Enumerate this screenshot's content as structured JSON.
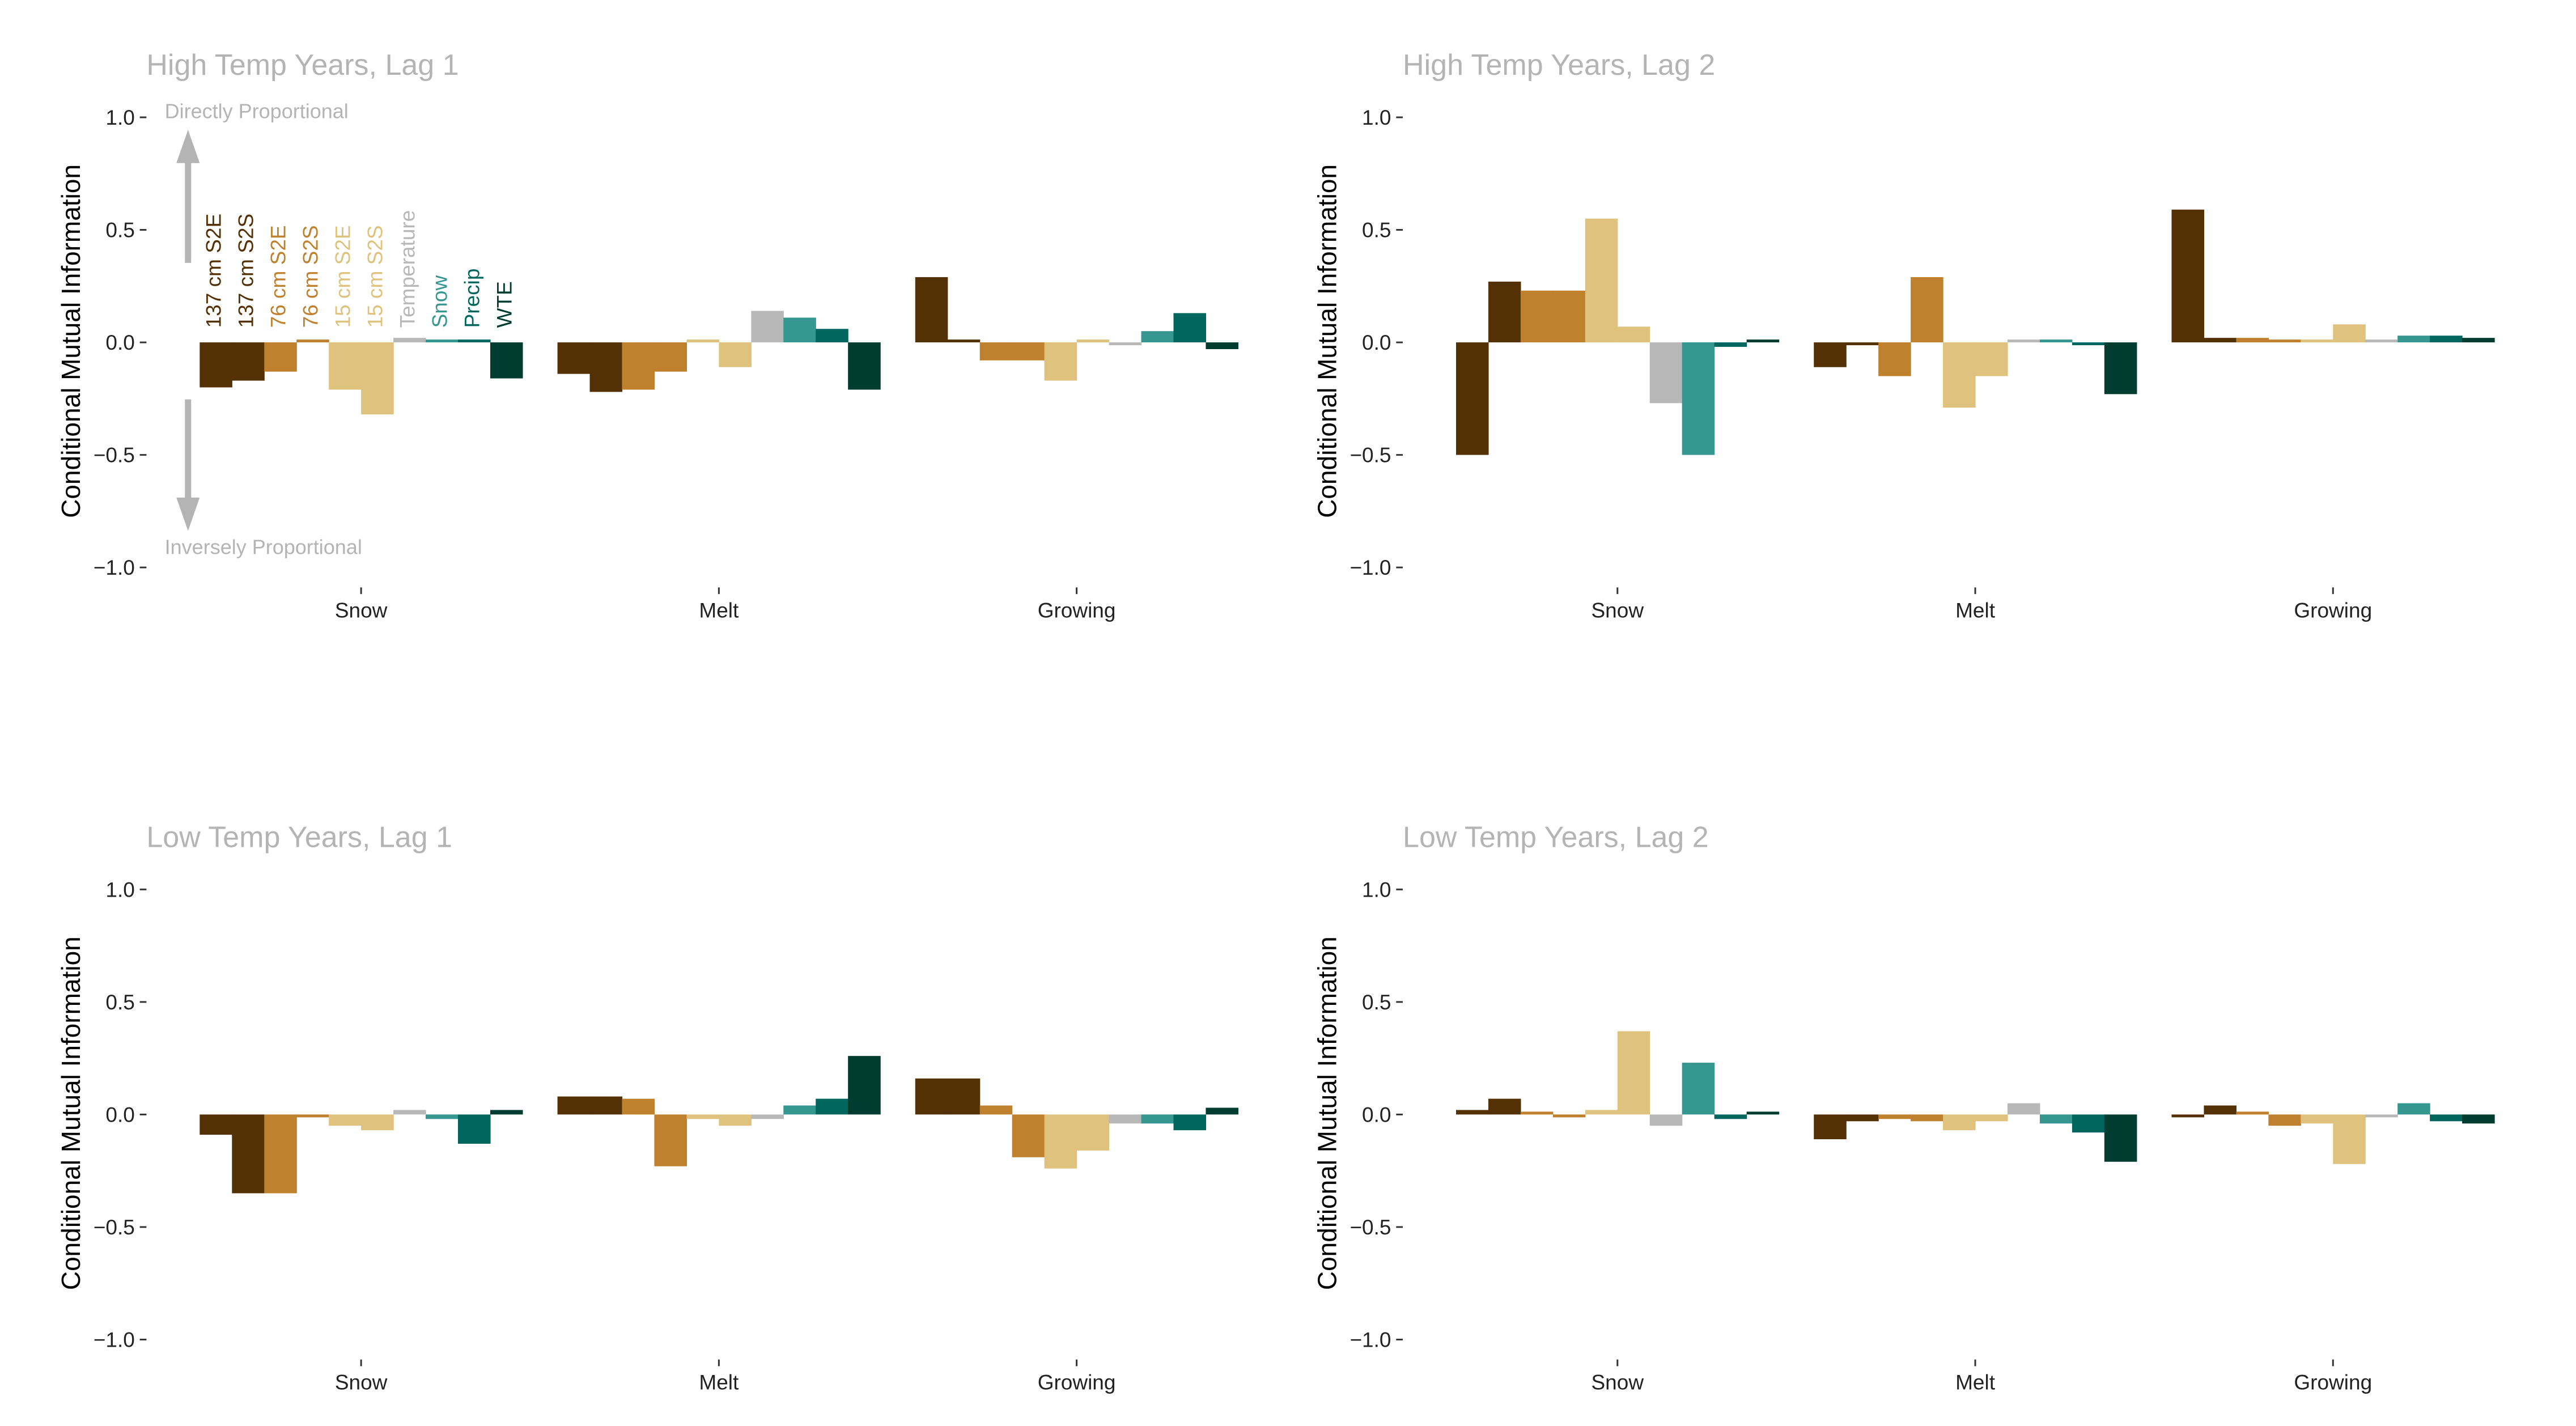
{
  "colors": {
    "137 cm S2E": "#543005",
    "137 cm S2S": "#543005",
    "76 cm S2E": "#bf812d",
    "76 cm S2S": "#bf812d",
    "15 cm S2E": "#dfc27d",
    "15 cm S2S": "#dfc27d",
    "Temperature": "#b8b8b8",
    "Snow": "#35978f",
    "Precip": "#01665e",
    "WTE": "#003c30"
  },
  "annotations": {
    "up": "Directly Proportional",
    "down": "Inversely Proportional"
  },
  "chart_data": [
    {
      "type": "bar",
      "title": "High Temp Years, Lag 1",
      "ylabel": "Conditional Mutual Information",
      "xlabel": "",
      "ylim": [
        -1.0,
        1.0
      ],
      "yticks": [
        1.0,
        0.5,
        0.0,
        -0.5,
        -1.0
      ],
      "ytick_labels": [
        "1.0",
        "0.5",
        "0.0",
        "−0.5",
        "−1.0"
      ],
      "categories": [
        "Snow",
        "Melt",
        "Growing"
      ],
      "series_labels": [
        "137 cm S2E",
        "137 cm S2S",
        "76 cm S2E",
        "76 cm S2S",
        "15 cm S2E",
        "15 cm S2S",
        "Temperature",
        "Snow",
        "Precip",
        "WTE"
      ],
      "legend_position": "inside-top-left",
      "grid": false,
      "values": [
        [
          -0.2,
          -0.17,
          -0.13,
          0.0,
          -0.21,
          -0.32,
          0.02,
          0.0,
          0.0,
          -0.16
        ],
        [
          -0.14,
          -0.22,
          -0.21,
          -0.13,
          0.0,
          -0.11,
          0.14,
          0.11,
          0.06,
          -0.21
        ],
        [
          0.29,
          0.01,
          -0.08,
          -0.08,
          -0.17,
          0.01,
          -0.01,
          0.05,
          0.13,
          -0.03
        ]
      ]
    },
    {
      "type": "bar",
      "title": "High Temp Years, Lag 2",
      "ylabel": "Conditional Mutual Information",
      "xlabel": "",
      "ylim": [
        -1.0,
        1.0
      ],
      "yticks": [
        1.0,
        0.5,
        0.0,
        -0.5,
        -1.0
      ],
      "ytick_labels": [
        "1.0",
        "0.5",
        "0.0",
        "−0.5",
        "−1.0"
      ],
      "categories": [
        "Snow",
        "Melt",
        "Growing"
      ],
      "grid": false,
      "values": [
        [
          -0.5,
          0.27,
          0.23,
          0.23,
          0.55,
          0.07,
          -0.27,
          -0.5,
          -0.02,
          0.01
        ],
        [
          -0.11,
          -0.01,
          -0.15,
          0.29,
          -0.29,
          -0.15,
          0.01,
          0.0,
          -0.01,
          -0.23
        ],
        [
          0.59,
          0.02,
          0.02,
          0.01,
          0.01,
          0.08,
          0.01,
          0.03,
          0.03,
          0.02
        ]
      ]
    },
    {
      "type": "bar",
      "title": "Low Temp Years, Lag 1",
      "ylabel": "Conditional Mutual Information",
      "xlabel": "",
      "ylim": [
        -1.0,
        1.0
      ],
      "yticks": [
        1.0,
        0.5,
        0.0,
        -0.5,
        -1.0
      ],
      "ytick_labels": [
        "1.0",
        "0.5",
        "0.0",
        "−0.5",
        "−1.0"
      ],
      "categories": [
        "Snow",
        "Melt",
        "Growing"
      ],
      "grid": false,
      "values": [
        [
          -0.09,
          -0.35,
          -0.35,
          -0.01,
          -0.05,
          -0.07,
          0.02,
          -0.02,
          -0.13,
          0.02
        ],
        [
          0.08,
          0.08,
          0.07,
          -0.23,
          -0.02,
          -0.05,
          -0.02,
          0.04,
          0.07,
          0.26
        ],
        [
          0.16,
          0.16,
          0.04,
          -0.19,
          -0.24,
          -0.16,
          -0.04,
          -0.04,
          -0.07,
          0.03
        ]
      ]
    },
    {
      "type": "bar",
      "title": "Low Temp Years, Lag 2",
      "ylabel": "Conditional Mutual Information",
      "xlabel": "",
      "ylim": [
        -1.0,
        1.0
      ],
      "yticks": [
        1.0,
        0.5,
        0.0,
        -0.5,
        -1.0
      ],
      "ytick_labels": [
        "1.0",
        "0.5",
        "0.0",
        "−0.5",
        "−1.0"
      ],
      "categories": [
        "Snow",
        "Melt",
        "Growing"
      ],
      "grid": false,
      "values": [
        [
          0.02,
          0.07,
          0.01,
          -0.01,
          0.02,
          0.37,
          -0.05,
          0.23,
          -0.02,
          0.01
        ],
        [
          -0.11,
          -0.03,
          -0.02,
          -0.03,
          -0.07,
          -0.03,
          0.05,
          -0.04,
          -0.08,
          -0.21
        ],
        [
          -0.01,
          0.04,
          0.01,
          -0.05,
          -0.04,
          -0.22,
          -0.01,
          0.05,
          -0.03,
          -0.04
        ]
      ]
    }
  ]
}
